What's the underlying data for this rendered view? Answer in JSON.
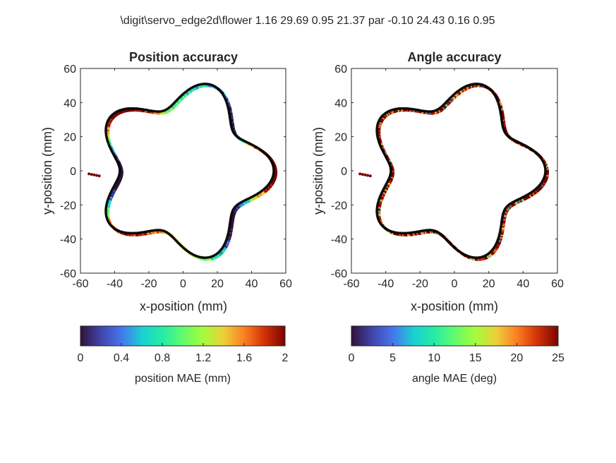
{
  "figure": {
    "suptitle": "\\digit\\servo_edge2d\\flower 1.16 29.69  0.95 21.37 par -0.10 24.43 0.16 0.95"
  },
  "chart_data": [
    {
      "type": "scatter",
      "title": "Position accuracy",
      "xlabel": "x-position (mm)",
      "ylabel": "y-position (mm)",
      "xlim": [
        -60,
        60
      ],
      "ylim": [
        -60,
        60
      ],
      "xticks": [
        -60,
        -40,
        -20,
        0,
        20,
        40,
        60
      ],
      "yticks": [
        -60,
        -40,
        -20,
        0,
        20,
        40,
        60
      ],
      "xtick_labels": [
        "-60",
        "-40",
        "-20",
        "0",
        "20",
        "40",
        "60"
      ],
      "ytick_labels": [
        "-60",
        "-40",
        "-20",
        "0",
        "20",
        "40",
        "60"
      ],
      "series": [
        {
          "name": "ground truth contour",
          "shape": "5-lobed flower, r = 45 + 8*cos(5*theta) mm",
          "color": "#000000"
        },
        {
          "name": "predicted contour (colored by position MAE)",
          "offset_mm": [
            1.2,
            -1.0
          ]
        },
        {
          "name": "start approach points",
          "x": [
            -55,
            -53.5,
            -52,
            -50.5,
            -49
          ],
          "y": [
            -1.8,
            -2.1,
            -2.4,
            -2.7,
            -3.0
          ],
          "color": "#7a0403"
        }
      ],
      "colorbar": {
        "label": "position MAE (mm)",
        "min": 0,
        "max": 2,
        "ticks": [
          0,
          0.4,
          0.8,
          1.2,
          1.6,
          2
        ],
        "tick_labels": [
          "0",
          "0.4",
          "0.8",
          "1.2",
          "1.6",
          "2"
        ],
        "colormap": "turbo"
      }
    },
    {
      "type": "scatter",
      "title": "Angle accuracy",
      "xlabel": "x-position (mm)",
      "ylabel": "y-position (mm)",
      "xlim": [
        -60,
        60
      ],
      "ylim": [
        -60,
        60
      ],
      "xticks": [
        -60,
        -40,
        -20,
        0,
        20,
        40,
        60
      ],
      "yticks": [
        -60,
        -40,
        -20,
        0,
        20,
        40,
        60
      ],
      "xtick_labels": [
        "-60",
        "-40",
        "-20",
        "0",
        "20",
        "40",
        "60"
      ],
      "ytick_labels": [
        "-60",
        "-40",
        "-20",
        "0",
        "20",
        "40",
        "60"
      ],
      "series": [
        {
          "name": "ground truth contour",
          "shape": "5-lobed flower, r = 45 + 8*cos(5*theta) mm",
          "color": "#000000"
        },
        {
          "name": "predicted contour (colored by angle MAE)",
          "offset_mm": [
            1.2,
            -1.0
          ]
        },
        {
          "name": "start approach points",
          "x": [
            -55,
            -53.5,
            -52,
            -50.5,
            -49
          ],
          "y": [
            -1.8,
            -2.1,
            -2.4,
            -2.7,
            -3.0
          ],
          "color": "#7a0403"
        }
      ],
      "colorbar": {
        "label": "angle MAE (deg)",
        "min": 0,
        "max": 25,
        "ticks": [
          0,
          5,
          10,
          15,
          20,
          25
        ],
        "tick_labels": [
          "0",
          "5",
          "10",
          "15",
          "20",
          "25"
        ],
        "colormap": "turbo"
      }
    }
  ]
}
